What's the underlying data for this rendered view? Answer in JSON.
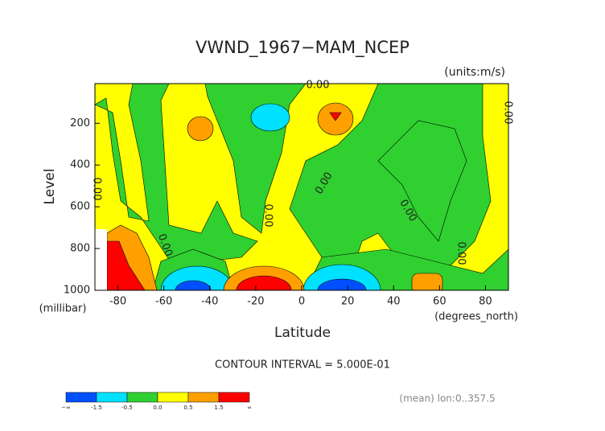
{
  "chart_data": {
    "type": "contour",
    "title": "VWND_1967−MAM_NCEP",
    "units": "(units:m/s)",
    "ylabel": "Level",
    "yunits": "(millibar)",
    "xlabel": "Latitude",
    "xunits": "(degrees_north)",
    "xlim": [
      -90,
      90
    ],
    "xticks": [
      -80,
      -60,
      -40,
      -20,
      0,
      20,
      40,
      60,
      80
    ],
    "ylim": [
      1000,
      10
    ],
    "yticks": [
      200,
      400,
      600,
      800,
      1000
    ],
    "contour_interval": "CONTOUR INTERVAL = 5.000E-01",
    "footnote": "(mean) lon:0..357.5",
    "contour_labels": [
      "0.00",
      "0.00",
      "0.00",
      "0.00",
      "0.00",
      "0.00",
      "0.00",
      "0.00"
    ],
    "colorbar": {
      "colors": [
        "#0050ff",
        "#00e0ff",
        "#30d030",
        "#ffff00",
        "#ffa000",
        "#ff0000"
      ],
      "labels": [
        "−∞",
        "-1.5",
        "-0.5",
        "0.0",
        "0.5",
        "1.5",
        "∞"
      ]
    }
  }
}
